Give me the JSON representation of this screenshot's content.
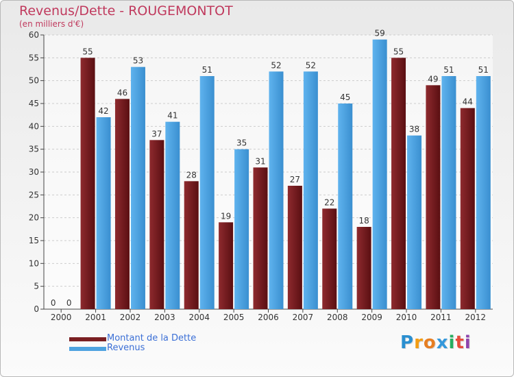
{
  "chart_data": {
    "type": "bar",
    "title": "Revenus/Dette - ROUGEMONTOT",
    "subtitle": "(en milliers d'€)",
    "categories": [
      "2000",
      "2001",
      "2002",
      "2003",
      "2004",
      "2005",
      "2006",
      "2007",
      "2008",
      "2009",
      "2010",
      "2011",
      "2012"
    ],
    "series": [
      {
        "name": "Montant de la Dette",
        "color": "#7a1f22",
        "values": [
          0,
          55,
          46,
          37,
          28,
          19,
          31,
          27,
          22,
          18,
          55,
          49,
          44
        ]
      },
      {
        "name": "Revenus",
        "color": "#4ea3e0",
        "values": [
          0,
          42,
          53,
          41,
          51,
          35,
          52,
          52,
          45,
          59,
          38,
          51,
          51
        ]
      }
    ],
    "ylim": [
      0,
      60
    ],
    "ytick_step": 5,
    "ytick_labels": [
      "0",
      "5",
      "10",
      "15",
      "20",
      "25",
      "30",
      "35",
      "40",
      "45",
      "50",
      "55",
      "60"
    ],
    "xlabel": "",
    "ylabel": "",
    "grid": true,
    "legend_position": "bottom-left"
  },
  "logo": {
    "letters": [
      "P",
      "r",
      "o",
      "x",
      "i",
      "t",
      "i"
    ],
    "colors": [
      "#2a8fd0",
      "#f39c12",
      "#e67e22",
      "#3498db",
      "#27ae60",
      "#e74c3c",
      "#8e44ad"
    ]
  }
}
